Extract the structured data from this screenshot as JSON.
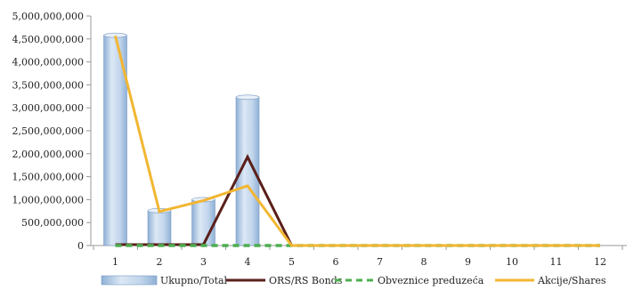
{
  "chart_data": {
    "type": "bar",
    "categories": [
      "1",
      "2",
      "3",
      "4",
      "5",
      "6",
      "7",
      "8",
      "9",
      "10",
      "11",
      "12"
    ],
    "ylim": [
      0,
      5000000000
    ],
    "yticks": [
      0,
      500000000,
      1000000000,
      1500000000,
      2000000000,
      2500000000,
      3000000000,
      3500000000,
      4000000000,
      4500000000,
      5000000000
    ],
    "grid": false,
    "legend_position": "bottom",
    "series": [
      {
        "name": "Ukupno/Total",
        "type": "bar",
        "color": "#b9cfe6",
        "values": [
          4580000000,
          760000000,
          1000000000,
          3230000000,
          0,
          0,
          0,
          0,
          0,
          0,
          0,
          0
        ]
      },
      {
        "name": "ORS/RS Bonds",
        "type": "line",
        "color": "#5a1f1a",
        "values": [
          20000000,
          20000000,
          20000000,
          1930000000,
          0,
          0,
          0,
          0,
          0,
          0,
          0,
          0
        ]
      },
      {
        "name": "Obveznice preduzeća",
        "type": "line",
        "style": "dashed",
        "color": "#4caf50",
        "values": [
          0,
          0,
          0,
          0,
          0,
          0,
          0,
          0,
          0,
          0,
          0,
          0
        ]
      },
      {
        "name": "Akcije/Shares",
        "type": "line",
        "color": "#f2b632",
        "values": [
          4570000000,
          740000000,
          980000000,
          1300000000,
          0,
          0,
          0,
          0,
          0,
          0,
          0,
          0
        ]
      }
    ]
  }
}
